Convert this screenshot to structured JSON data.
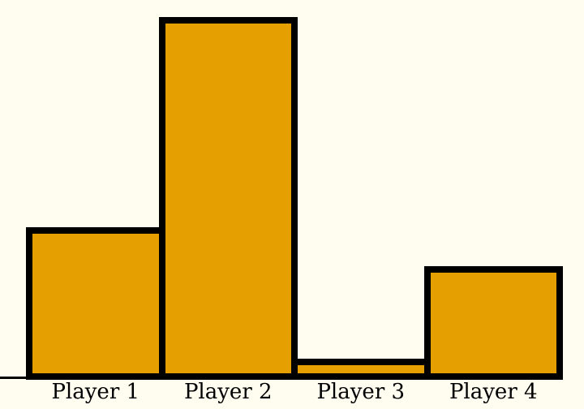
{
  "chart_data": {
    "type": "bar",
    "title": "",
    "xlabel": "",
    "ylabel": "",
    "categories": [
      "Player 1",
      "Player 2",
      "Player 3",
      "Player 4"
    ],
    "values": [
      41,
      100,
      4,
      30
    ],
    "ylim": [
      0,
      105
    ],
    "grid": false,
    "legend": null,
    "y_axis_ticks": "none",
    "bar_fill_color": "#E69F00",
    "bar_edge_color": "#000000",
    "axis_line_color": "#000000",
    "background_color": "#FFFDF0",
    "label_text_color": "#000000"
  }
}
